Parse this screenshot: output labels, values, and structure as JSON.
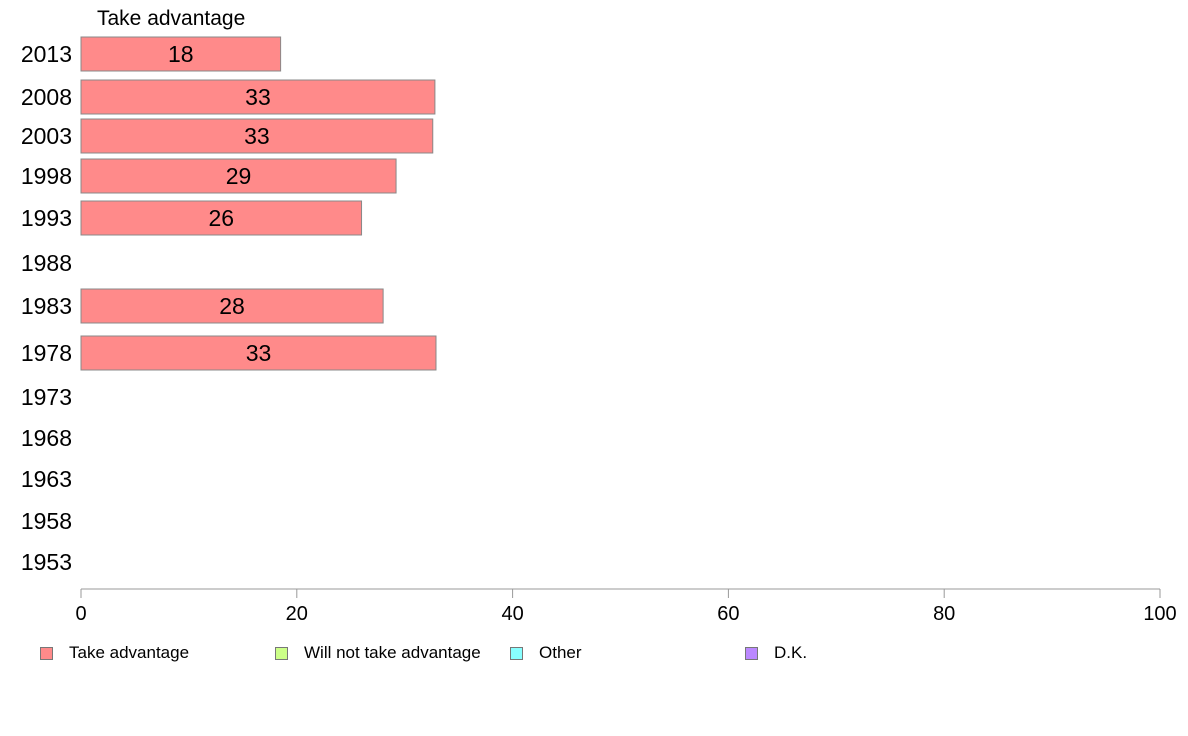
{
  "chart_data": {
    "type": "bar",
    "orientation": "horizontal",
    "series_header": "Take advantage",
    "categories": [
      "2013",
      "2008",
      "2003",
      "1998",
      "1993",
      "1988",
      "1983",
      "1978",
      "1973",
      "1968",
      "1963",
      "1958",
      "1953"
    ],
    "series": [
      {
        "name": "Take advantage",
        "color": "#ff8a8a",
        "values": [
          18.5,
          32.8,
          32.6,
          29.2,
          26.0,
          null,
          28.0,
          32.9,
          null,
          null,
          null,
          null,
          null
        ],
        "labels": [
          "18",
          "33",
          "33",
          "29",
          "26",
          "",
          "28",
          "33",
          "",
          "",
          "",
          "",
          ""
        ]
      }
    ],
    "xlim": [
      0,
      100
    ],
    "xticks": [
      "0",
      "20",
      "40",
      "60",
      "80",
      "100"
    ],
    "grid": false,
    "legend": {
      "position": "bottom",
      "items": [
        {
          "label": "Take advantage",
          "color": "#ff8a8a"
        },
        {
          "label": "Will not take advantage",
          "color": "#ccff88"
        },
        {
          "label": "Other",
          "color": "#88ffff"
        },
        {
          "label": "D.K.",
          "color": "#bb88ff"
        }
      ]
    }
  }
}
